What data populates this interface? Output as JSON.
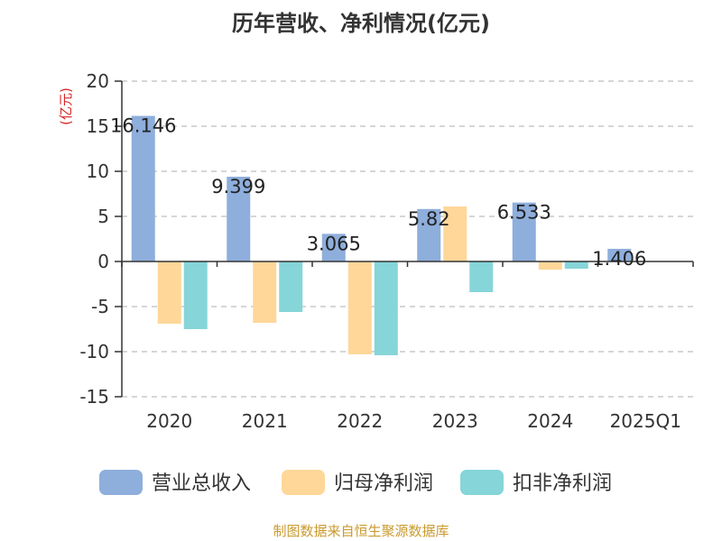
{
  "chart_data": {
    "type": "bar",
    "title": "历年营收、净利情况(亿元)",
    "unit_label": "(亿元)",
    "categories": [
      "2020",
      "2021",
      "2022",
      "2023",
      "2024",
      "2025Q1"
    ],
    "series": [
      {
        "name": "营业总收入",
        "color": "#8eaedc",
        "values": [
          16.146,
          9.399,
          3.065,
          5.82,
          6.533,
          1.406
        ]
      },
      {
        "name": "归母净利润",
        "color": "#fed799",
        "values": [
          -6.9,
          -6.8,
          -10.3,
          6.1,
          -0.9,
          null
        ]
      },
      {
        "name": "扣非净利润",
        "color": "#86d5d8",
        "values": [
          -7.5,
          -5.6,
          -10.4,
          -3.4,
          -0.8,
          null
        ]
      }
    ],
    "data_labels": [
      "16.146",
      "9.399",
      "3.065",
      "5.82",
      "6.533",
      "1.406"
    ],
    "ylim": [
      -15,
      20
    ],
    "yticks": [
      -15,
      -10,
      -5,
      0,
      5,
      10,
      15,
      20
    ],
    "grid": true,
    "legend_position": "bottom"
  },
  "source_text": "制图数据来自恒生聚源数据库"
}
